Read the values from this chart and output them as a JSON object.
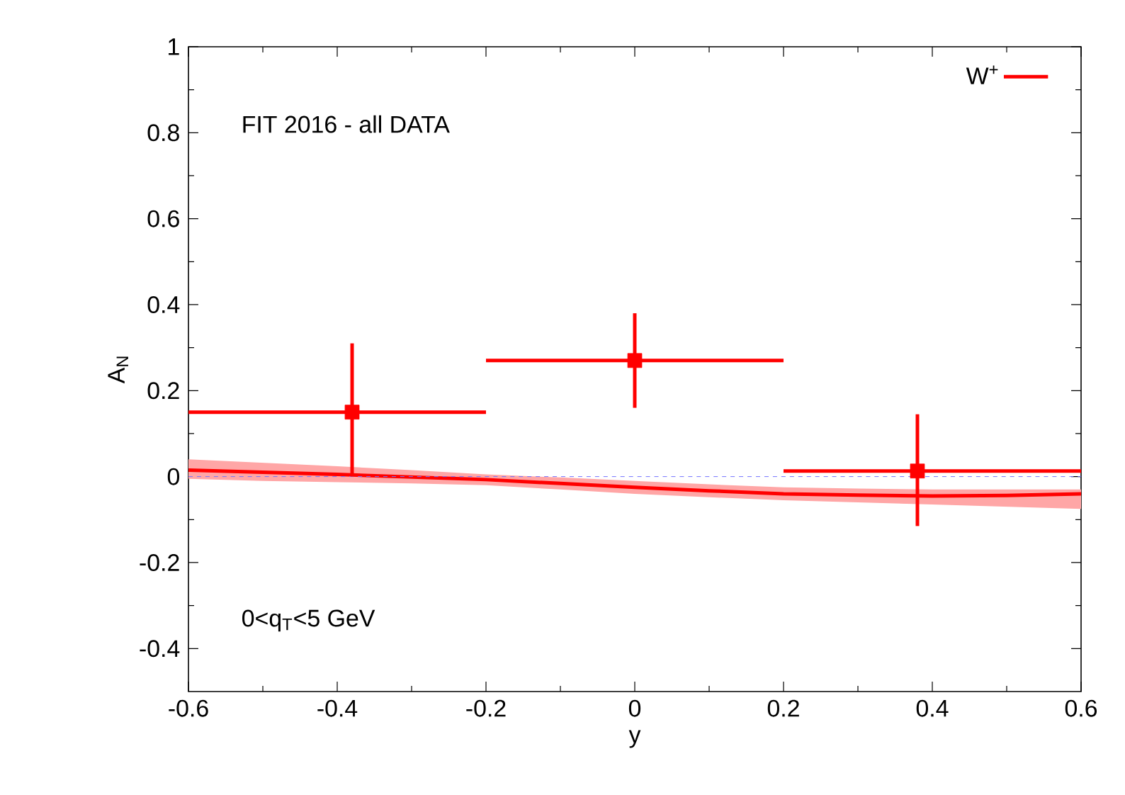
{
  "chart_data": {
    "type": "line",
    "xlabel": "y",
    "ylabel": "A$_{N}$",
    "annotations": [
      "FIT 2016 - all DATA",
      "0<q$_{T}$<5 GeV"
    ],
    "xlim": [
      -0.6,
      0.6
    ],
    "xticks": [
      -0.6,
      -0.4,
      -0.2,
      0,
      0.2,
      0.4,
      0.6
    ],
    "ylim": [
      -0.5,
      1
    ],
    "yticks": [
      -0.4,
      -0.2,
      0,
      0.2,
      0.4,
      0.6,
      0.8,
      1
    ],
    "legend": "top right",
    "ref_lines": [
      {
        "axis": "y",
        "value": 0,
        "color": "#7070ff",
        "line_style": "dashed"
      }
    ],
    "series": [
      {
        "name": "W$^{+}$",
        "color": "#ff0000",
        "x": [
          -0.6,
          -0.5,
          -0.4,
          -0.3,
          -0.2,
          -0.1,
          0,
          0.1,
          0.2,
          0.3,
          0.4,
          0.5,
          0.6
        ],
        "values": [
          0.015,
          0.01,
          0.005,
          -0.001,
          -0.007,
          -0.016,
          -0.025,
          -0.033,
          -0.04,
          -0.043,
          -0.045,
          -0.044,
          -0.04
        ],
        "lower": [
          -0.005,
          -0.01,
          -0.013,
          -0.016,
          -0.02,
          -0.03,
          -0.04,
          -0.048,
          -0.055,
          -0.06,
          -0.065,
          -0.07,
          -0.075
        ],
        "upper": [
          0.04,
          0.032,
          0.024,
          0.015,
          0.005,
          -0.002,
          -0.01,
          -0.018,
          -0.025,
          -0.028,
          -0.03,
          -0.03,
          -0.03
        ]
      },
      {
        "type": "scatter",
        "color": "#ff0000",
        "marker": "square",
        "x": [
          -0.38,
          0,
          0.38
        ],
        "values": [
          0.15,
          0.27,
          0.013
        ],
        "errors": [
          [
            0.0,
            0.31
          ],
          [
            0.16,
            0.38
          ],
          [
            -0.115,
            0.145
          ]
        ],
        "xerrors": [
          [
            -0.6,
            -0.2
          ],
          [
            -0.2,
            0.2
          ],
          [
            0.2,
            0.6
          ]
        ]
      }
    ]
  }
}
